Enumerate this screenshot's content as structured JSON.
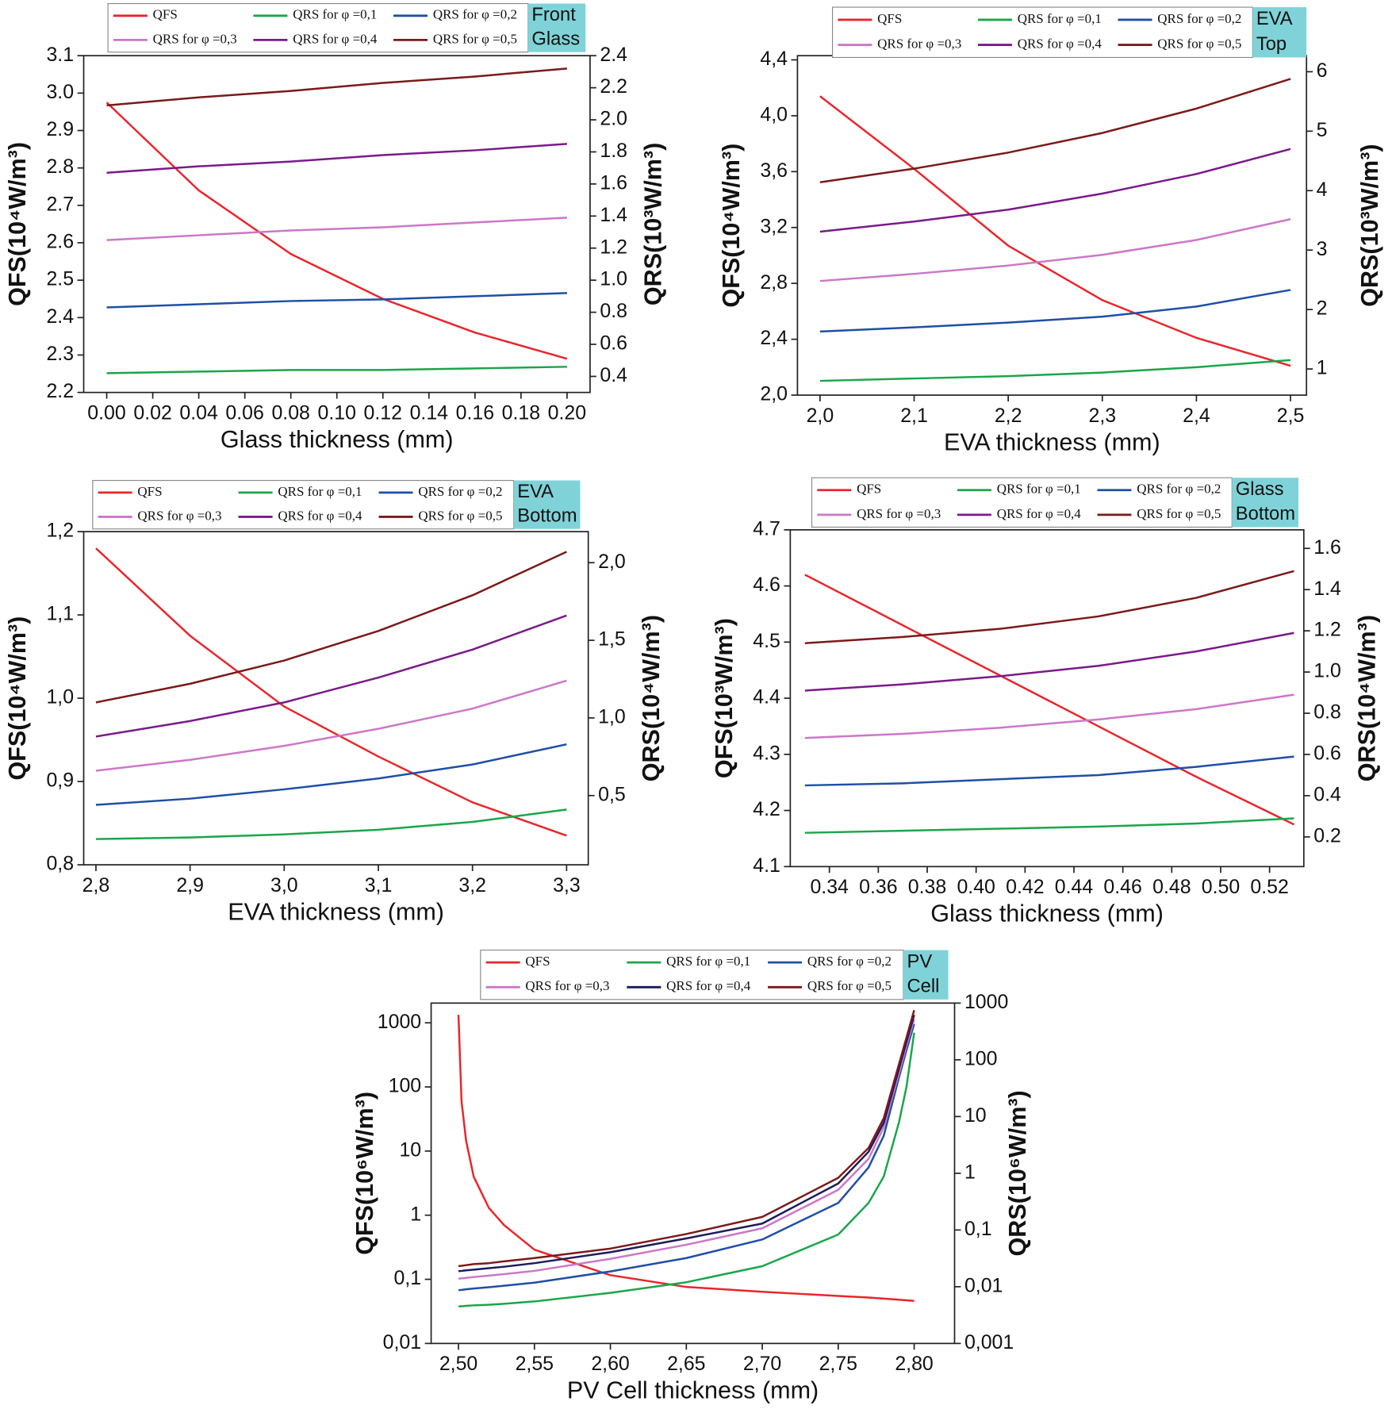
{
  "chart_data": [
    {
      "type": "line",
      "annotation": [
        "Front",
        "Glass"
      ],
      "xlabel": "Glass thickness (mm)",
      "ylabel": "QFS(10⁴W/m³)",
      "y2label": "QRS(10³W/m³)",
      "x": [
        0,
        0.04,
        0.08,
        0.12,
        0.16,
        0.2
      ],
      "xlim": [
        -0.01,
        0.21
      ],
      "ylim": [
        2.2,
        3.1
      ],
      "y2lim": [
        0.3,
        2.4
      ],
      "xticks": [
        {
          "value": 0,
          "label": "0.00"
        },
        0.02,
        0.04,
        0.06,
        0.08,
        {
          "value": 0.1,
          "label": "0.10"
        },
        0.12,
        0.14,
        0.16,
        0.18,
        {
          "value": 0.2,
          "label": "0.20"
        }
      ],
      "yticks": [
        2.2,
        2.3,
        2.4,
        2.5,
        2.6,
        2.7,
        2.8,
        2.9,
        {
          "value": 3,
          "label": "3.0"
        },
        3.1
      ],
      "y2ticks": [
        0.4,
        0.6,
        0.8,
        {
          "value": 1,
          "label": "1.0"
        },
        1.2,
        1.4,
        1.6,
        1.8,
        {
          "value": 2,
          "label": "2.0"
        },
        2.2,
        2.4
      ],
      "series": [
        {
          "name": "QFS",
          "color": "#e8262b",
          "values": [
            2.975,
            2.74,
            2.57,
            2.45,
            2.36,
            2.29
          ]
        },
        {
          "name": "QRS for φ =0,1",
          "color": "#1aa64a",
          "axis": "y2",
          "values": [
            0.42,
            0.43,
            0.44,
            0.44,
            0.45,
            0.46
          ]
        },
        {
          "name": "QRS for φ =0,2",
          "color": "#1f4fa6",
          "axis": "y2",
          "values": [
            0.83,
            0.85,
            0.87,
            0.88,
            0.9,
            0.92
          ]
        },
        {
          "name": "QRS for φ =0,3",
          "color": "#cc77c8",
          "axis": "y2",
          "values": [
            1.25,
            1.28,
            1.31,
            1.33,
            1.36,
            1.39
          ]
        },
        {
          "name": "QRS for φ =0,4",
          "color": "#7a1a8a",
          "axis": "y2",
          "values": [
            1.67,
            1.71,
            1.74,
            1.78,
            1.81,
            1.85
          ]
        },
        {
          "name": "QRS for φ =0,5",
          "color": "#7b1a1a",
          "axis": "y2",
          "values": [
            2.09,
            2.14,
            2.18,
            2.23,
            2.27,
            2.32
          ]
        }
      ]
    },
    {
      "type": "line",
      "annotation": [
        "EVA",
        "Top"
      ],
      "xlabel": "EVA thickness (mm)",
      "ylabel": "QFS(10⁴W/m³)",
      "y2label": "QRS(10³W/m³)",
      "x": [
        2.0,
        2.1,
        2.2,
        2.3,
        2.4,
        2.5
      ],
      "xlim": [
        1.976,
        2.517
      ],
      "ylim": [
        2.0,
        4.43
      ],
      "y2lim": [
        0.56,
        6.27
      ],
      "xticks": [
        {
          "value": 2.0,
          "label": "2,0"
        },
        {
          "value": 2.1,
          "label": "2,1"
        },
        {
          "value": 2.2,
          "label": "2,2"
        },
        {
          "value": 2.3,
          "label": "2,3"
        },
        {
          "value": 2.4,
          "label": "2,4"
        },
        {
          "value": 2.5,
          "label": "2,5"
        }
      ],
      "yticks": [
        {
          "value": 2.0,
          "label": "2,0"
        },
        {
          "value": 2.4,
          "label": "2,4"
        },
        {
          "value": 2.8,
          "label": "2,8"
        },
        {
          "value": 3.2,
          "label": "3,2"
        },
        {
          "value": 3.6,
          "label": "3,6"
        },
        {
          "value": 4.0,
          "label": "4,0"
        },
        {
          "value": 4.4,
          "label": "4,4"
        }
      ],
      "y2ticks": [
        1,
        2,
        3,
        4,
        5,
        6
      ],
      "series": [
        {
          "name": "QFS",
          "color": "#e8262b",
          "values": [
            4.14,
            3.62,
            3.07,
            2.68,
            2.41,
            2.21
          ]
        },
        {
          "name": "QRS for φ =0,1",
          "color": "#1aa64a",
          "axis": "y2",
          "values": [
            0.8,
            0.84,
            0.88,
            0.94,
            1.03,
            1.15
          ]
        },
        {
          "name": "QRS for φ =0,2",
          "color": "#1f4fa6",
          "axis": "y2",
          "values": [
            1.63,
            1.7,
            1.78,
            1.88,
            2.05,
            2.33
          ]
        },
        {
          "name": "QRS for φ =0,3",
          "color": "#cc77c8",
          "axis": "y2",
          "values": [
            2.48,
            2.6,
            2.74,
            2.92,
            3.17,
            3.52
          ]
        },
        {
          "name": "QRS for φ =0,4",
          "color": "#7a1a8a",
          "axis": "y2",
          "values": [
            3.31,
            3.48,
            3.68,
            3.95,
            4.28,
            4.7
          ]
        },
        {
          "name": "QRS for φ =0,5",
          "color": "#7b1a1a",
          "axis": "y2",
          "values": [
            4.14,
            4.37,
            4.64,
            4.97,
            5.38,
            5.88
          ]
        }
      ]
    },
    {
      "type": "line",
      "annotation": [
        "EVA",
        "Bottom"
      ],
      "xlabel": "EVA thickness (mm)",
      "ylabel": "QFS(10⁴W/m³)",
      "y2label": "QRS(10⁴W/m³)",
      "x": [
        2.8,
        2.9,
        3.0,
        3.1,
        3.2,
        3.3
      ],
      "xlim": [
        2.787,
        3.323
      ],
      "ylim": [
        0.8,
        1.2
      ],
      "y2lim": [
        0.054,
        2.2
      ],
      "xticks": [
        {
          "value": 2.8,
          "label": "2,8"
        },
        {
          "value": 2.9,
          "label": "2,9"
        },
        {
          "value": 3.0,
          "label": "3,0"
        },
        {
          "value": 3.1,
          "label": "3,1"
        },
        {
          "value": 3.2,
          "label": "3,2"
        },
        {
          "value": 3.3,
          "label": "3,3"
        }
      ],
      "yticks": [
        {
          "value": 0.8,
          "label": "0,8"
        },
        {
          "value": 0.9,
          "label": "0,9"
        },
        {
          "value": 1.0,
          "label": "1,0"
        },
        {
          "value": 1.1,
          "label": "1,1"
        },
        {
          "value": 1.2,
          "label": "1,2"
        }
      ],
      "y2ticks": [
        {
          "value": 0.5,
          "label": "0,5"
        },
        {
          "value": 1.0,
          "label": "1,0"
        },
        {
          "value": 1.5,
          "label": "1,5"
        },
        {
          "value": 2.0,
          "label": "2,0"
        }
      ],
      "series": [
        {
          "name": "QFS",
          "color": "#e8262b",
          "values": [
            1.18,
            1.075,
            0.99,
            0.93,
            0.875,
            0.835
          ]
        },
        {
          "name": "QRS for φ =0,1",
          "color": "#1aa64a",
          "axis": "y2",
          "values": [
            0.22,
            0.23,
            0.25,
            0.28,
            0.33,
            0.41
          ]
        },
        {
          "name": "QRS for φ =0,2",
          "color": "#1f4fa6",
          "axis": "y2",
          "values": [
            0.44,
            0.48,
            0.54,
            0.61,
            0.7,
            0.83
          ]
        },
        {
          "name": "QRS for φ =0,3",
          "color": "#cc77c8",
          "axis": "y2",
          "values": [
            0.66,
            0.73,
            0.82,
            0.93,
            1.06,
            1.24
          ]
        },
        {
          "name": "QRS for φ =0,4",
          "color": "#7a1a8a",
          "axis": "y2",
          "values": [
            0.88,
            0.98,
            1.1,
            1.26,
            1.44,
            1.66
          ]
        },
        {
          "name": "QRS for φ =0,5",
          "color": "#7b1a1a",
          "axis": "y2",
          "values": [
            1.1,
            1.22,
            1.37,
            1.56,
            1.79,
            2.07
          ]
        }
      ]
    },
    {
      "type": "line",
      "annotation": [
        "Glass",
        "Bottom"
      ],
      "xlabel": "Glass thickness (mm)",
      "ylabel": "QFS(10³W/m³)",
      "y2label": "QRS(10⁴W/m³)",
      "x": [
        0.33,
        0.37,
        0.41,
        0.45,
        0.49,
        0.53
      ],
      "xlim": [
        0.324,
        0.534
      ],
      "ylim": [
        4.1,
        4.7
      ],
      "y2lim": [
        0.056,
        1.69
      ],
      "xticks": [
        0.34,
        0.36,
        0.38,
        {
          "value": 0.4,
          "label": "0.40"
        },
        0.42,
        0.44,
        0.46,
        0.48,
        {
          "value": 0.5,
          "label": "0.50"
        },
        0.52
      ],
      "yticks": [
        4.1,
        4.2,
        4.3,
        4.4,
        4.5,
        4.6,
        4.7
      ],
      "y2ticks": [
        0.2,
        0.4,
        0.6,
        0.8,
        {
          "value": 1,
          "label": "1.0"
        },
        1.2,
        1.4,
        1.6
      ],
      "series": [
        {
          "name": "QFS",
          "color": "#e8262b",
          "values": [
            4.62,
            4.53,
            4.44,
            4.35,
            4.26,
            4.175
          ]
        },
        {
          "name": "QRS for φ =0,1",
          "color": "#1aa64a",
          "axis": "y2",
          "values": [
            0.22,
            0.23,
            0.24,
            0.25,
            0.265,
            0.29
          ]
        },
        {
          "name": "QRS for φ =0,2",
          "color": "#1f4fa6",
          "axis": "y2",
          "values": [
            0.45,
            0.46,
            0.48,
            0.5,
            0.54,
            0.59
          ]
        },
        {
          "name": "QRS for φ =0,3",
          "color": "#cc77c8",
          "axis": "y2",
          "values": [
            0.68,
            0.7,
            0.73,
            0.77,
            0.82,
            0.89
          ]
        },
        {
          "name": "QRS for φ =0,4",
          "color": "#7a1a8a",
          "axis": "y2",
          "values": [
            0.91,
            0.94,
            0.98,
            1.03,
            1.1,
            1.19
          ]
        },
        {
          "name": "QRS for φ =0,5",
          "color": "#7b1a1a",
          "axis": "y2",
          "values": [
            1.14,
            1.17,
            1.21,
            1.27,
            1.36,
            1.49
          ]
        }
      ]
    },
    {
      "type": "line",
      "annotation": [
        "PV",
        "Cell"
      ],
      "ylog": true,
      "y2log": true,
      "xlabel": "PV Cell thickness (mm)",
      "ylabel": "QFS(10⁶W/m³)",
      "y2label": "QRS(10⁶W/m³)",
      "x": [
        2.5,
        2.502,
        2.505,
        2.51,
        2.52,
        2.53,
        2.55,
        2.6,
        2.65,
        2.7,
        2.75,
        2.77,
        2.78,
        2.79,
        2.795,
        2.8
      ],
      "xlim": [
        2.482,
        2.8266
      ],
      "ylim": [
        0.01,
        2030
      ],
      "y2lim": [
        0.001,
        1000
      ],
      "xticks": [
        {
          "value": 2.5,
          "label": "2,50"
        },
        {
          "value": 2.55,
          "label": "2,55"
        },
        {
          "value": 2.6,
          "label": "2,60"
        },
        {
          "value": 2.65,
          "label": "2,65"
        },
        {
          "value": 2.7,
          "label": "2,70"
        },
        {
          "value": 2.75,
          "label": "2,75"
        },
        {
          "value": 2.8,
          "label": "2,80"
        }
      ],
      "yticks": [
        {
          "value": 0.01,
          "label": "0,01"
        },
        {
          "value": 0.1,
          "label": "0,1"
        },
        1,
        10,
        100,
        1000
      ],
      "y2ticks": [
        {
          "value": 0.001,
          "label": "0,001"
        },
        {
          "value": 0.01,
          "label": "0,01"
        },
        {
          "value": 0.1,
          "label": "0,1"
        },
        1,
        10,
        100,
        1000
      ],
      "series": [
        {
          "name": "QFS",
          "color": "#e8262b",
          "values": [
            1330,
            60,
            14.6,
            4.0,
            1.3,
            0.7,
            0.29,
            0.116,
            0.076,
            0.064,
            0.055,
            0.052,
            0.05,
            0.048,
            0.047,
            0.046
          ]
        },
        {
          "name": "QRS for φ =0,1",
          "color": "#1aa64a",
          "axis": "y2",
          "values": [
            0.0045,
            0.0045,
            0.0046,
            0.0047,
            0.0048,
            0.005,
            0.0055,
            0.0078,
            0.012,
            0.023,
            0.083,
            0.3,
            0.88,
            7.9,
            34,
            300
          ]
        },
        {
          "name": "QRS for φ =0,2",
          "color": "#1f4fa6",
          "axis": "y2",
          "values": [
            0.0087,
            0.0088,
            0.009,
            0.0093,
            0.0098,
            0.0104,
            0.0118,
            0.0186,
            0.032,
            0.068,
            0.3,
            1.27,
            4.6,
            49,
            150,
            430
          ]
        },
        {
          "name": "QRS for φ =0,3",
          "color": "#cc77c8",
          "axis": "y2",
          "values": [
            0.0139,
            0.014,
            0.0143,
            0.0148,
            0.0157,
            0.0167,
            0.019,
            0.031,
            0.055,
            0.107,
            0.51,
            1.8,
            6.5,
            58,
            180,
            520
          ]
        },
        {
          "name": "QRS for φ =0,4",
          "color": "#1c1c5a",
          "axis": "y2",
          "values": [
            0.0188,
            0.019,
            0.0194,
            0.02,
            0.0212,
            0.0225,
            0.026,
            0.0406,
            0.071,
            0.13,
            0.66,
            2.4,
            7.8,
            70,
            210,
            620
          ]
        },
        {
          "name": "QRS for φ =0,5",
          "color": "#7b1a1a",
          "axis": "y2",
          "values": [
            0.0231,
            0.0234,
            0.024,
            0.025,
            0.026,
            0.028,
            0.032,
            0.047,
            0.085,
            0.17,
            0.83,
            2.8,
            9.4,
            84,
            250,
            750
          ]
        }
      ]
    }
  ]
}
